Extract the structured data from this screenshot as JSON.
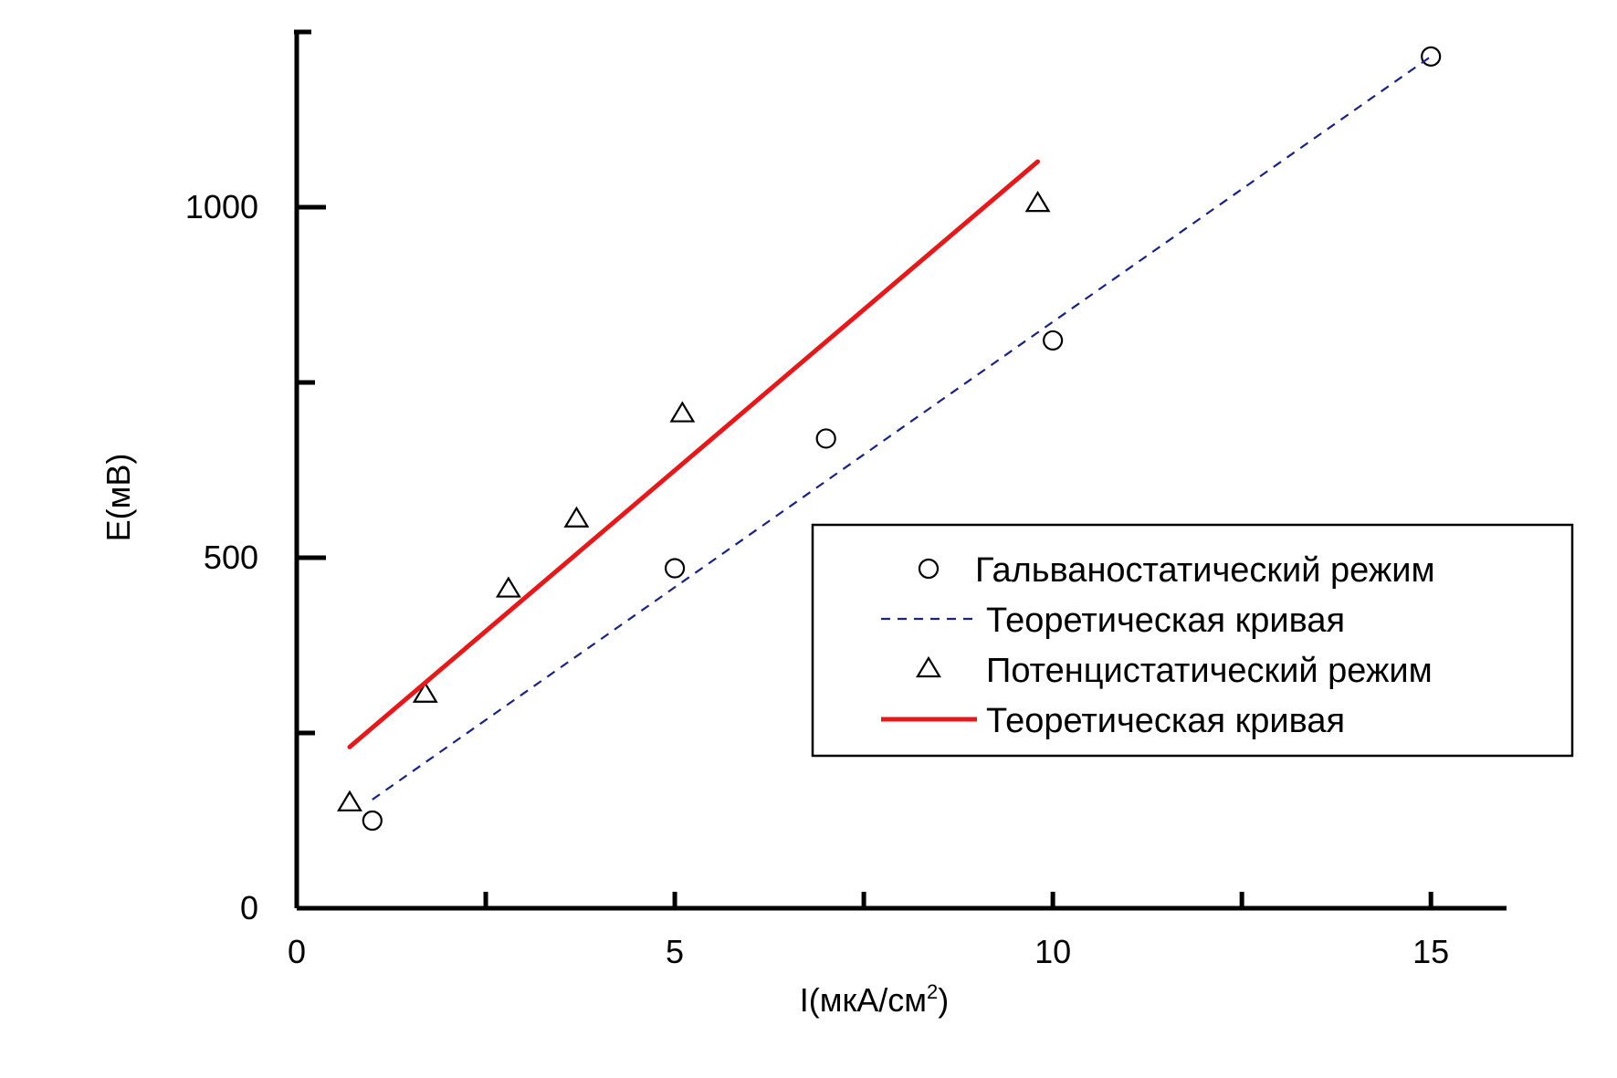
{
  "chart_data": {
    "type": "scatter",
    "title": "",
    "xlabel": "I(мкА/см",
    "xlabel_sup": "2",
    "xlabel_end": ")",
    "ylabel": "E(мВ)",
    "xlim": [
      0,
      16
    ],
    "ylim": [
      0,
      1250
    ],
    "x_ticks": [
      0,
      5,
      10,
      15
    ],
    "x_tick_labels": [
      "0",
      "5",
      "10",
      "15"
    ],
    "x_minor_ticks": [
      2.5,
      7.5,
      12.5
    ],
    "y_ticks": [
      0,
      500,
      1000
    ],
    "y_tick_labels": [
      "0",
      "500",
      "1000"
    ],
    "y_minor_ticks": [
      250,
      750
    ],
    "legend_position": "lower-right",
    "series": [
      {
        "name": "Гальваностатический режим",
        "kind": "scatter",
        "marker": "circle",
        "color": "#000000",
        "x": [
          1.0,
          5.0,
          7.0,
          10.0,
          15.0
        ],
        "y": [
          125,
          485,
          670,
          810,
          1215
        ]
      },
      {
        "name": "Теоретическая кривая",
        "kind": "line",
        "style": "dashed",
        "color": "#1a237e",
        "x": [
          1.0,
          15.0
        ],
        "y": [
          155,
          1215
        ]
      },
      {
        "name": "Потенцистатический режим",
        "kind": "scatter",
        "marker": "triangle",
        "color": "#000000",
        "x": [
          0.7,
          1.7,
          2.8,
          3.7,
          5.1,
          9.8
        ],
        "y": [
          150,
          305,
          455,
          555,
          705,
          1005
        ]
      },
      {
        "name": "Теоретическая кривая",
        "kind": "line",
        "style": "solid",
        "color": "#e31a1c",
        "x": [
          0.7,
          9.8
        ],
        "y": [
          230,
          1065
        ]
      }
    ]
  }
}
